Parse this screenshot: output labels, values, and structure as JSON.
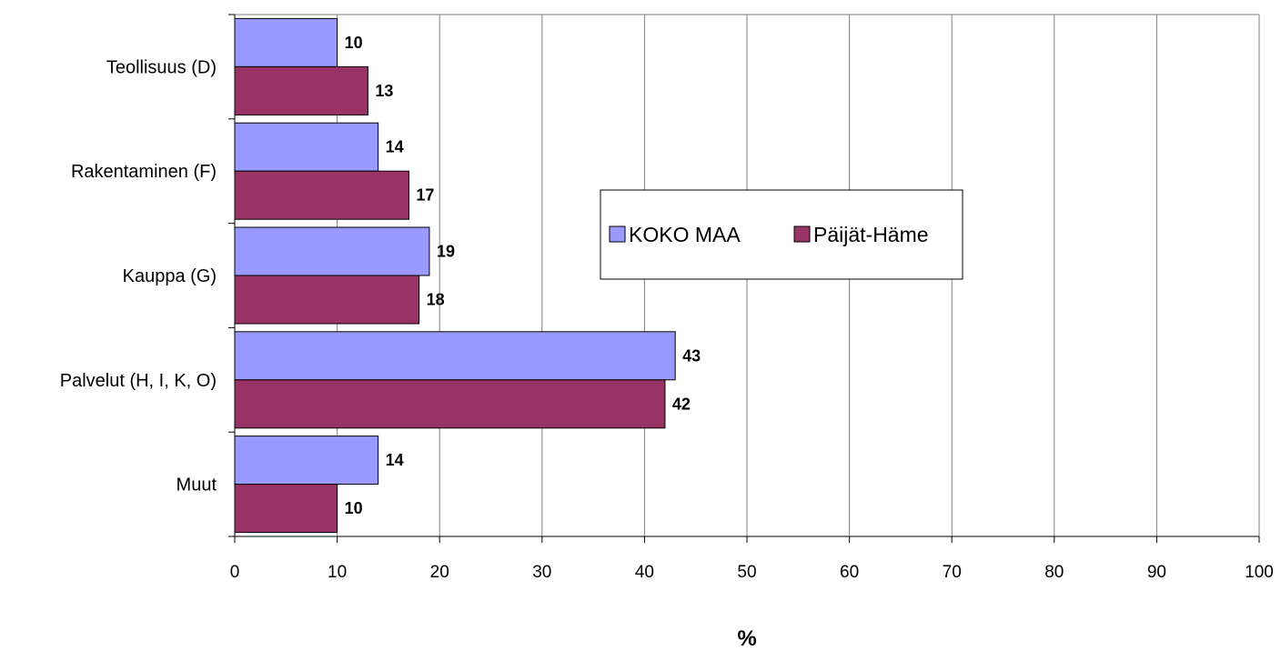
{
  "chart_data": {
    "type": "bar",
    "orientation": "horizontal",
    "categories": [
      "Teollisuus (D)",
      "Rakentaminen (F)",
      "Kauppa (G)",
      "Palvelut (H, I, K, O)",
      "Muut"
    ],
    "series": [
      {
        "name": "KOKO MAA",
        "color": "#9999ff",
        "values": [
          10,
          14,
          19,
          43,
          14
        ]
      },
      {
        "name": "Päijät-Häme",
        "color": "#993366",
        "values": [
          13,
          17,
          18,
          42,
          10
        ]
      }
    ],
    "xlabel": "%",
    "ylabel": "",
    "xlim": [
      0,
      100
    ],
    "xticks": [
      0,
      10,
      20,
      30,
      40,
      50,
      60,
      70,
      80,
      90,
      100
    ],
    "grid": true,
    "legend_position": "center",
    "data_labels": true
  }
}
